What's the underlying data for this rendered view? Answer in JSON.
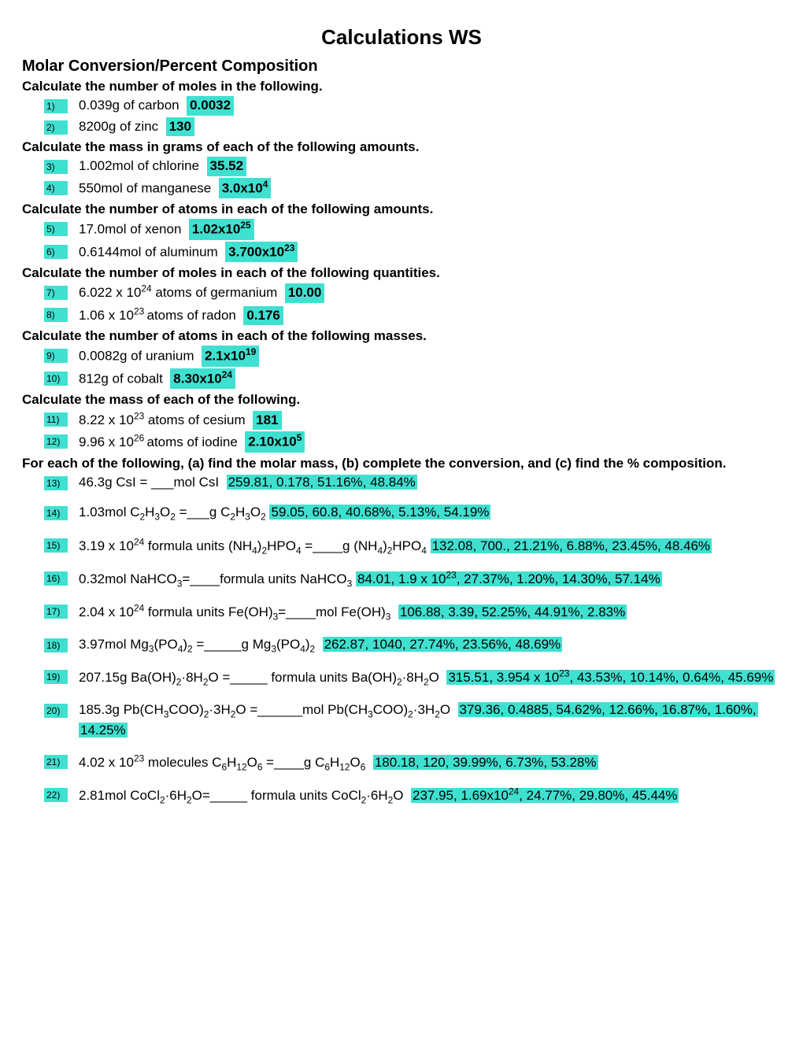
{
  "title": "Calculations WS",
  "section_heading": "Molar Conversion/Percent Composition",
  "instr_moles": "Calculate the number of moles in the following.",
  "q1_num": "1)",
  "q1_text": "0.039g of carbon",
  "q1_ans": "0.0032",
  "q2_num": "2)",
  "q2_text": "8200g of zinc",
  "q2_ans": "130",
  "instr_massg": "Calculate the mass in grams of each of the following amounts.",
  "q3_num": "3)",
  "q3_text": "1.002mol of chlorine",
  "q3_ans": "35.52",
  "q4_num": "4)",
  "q4_text": "550mol of manganese",
  "q4_ans_pre": "3.0x10",
  "q4_ans_sup": "4",
  "instr_atoms_amt": "Calculate the number of atoms in each of the following amounts.",
  "q5_num": "5)",
  "q5_text": "17.0mol of xenon",
  "q5_ans_pre": "1.02x10",
  "q5_ans_sup": "25",
  "q6_num": "6)",
  "q6_text": "0.6144mol of aluminum",
  "q6_ans_pre": "3.700x10",
  "q6_ans_sup": "23",
  "instr_moles_qty": "Calculate the number of moles in each of the following quantities.",
  "q7_num": "7)",
  "q7_text_pre": "6.022 x 10",
  "q7_text_sup": "24",
  "q7_text_post": " atoms of germanium",
  "q7_ans": "10.00",
  "q8_num": "8)",
  "q8_text_pre": "1.06 x 10",
  "q8_text_sup": "23 ",
  "q8_text_post": "atoms of radon",
  "q8_ans": "0.176",
  "instr_atoms_mass": "Calculate the number of atoms in each of the following masses.",
  "q9_num": "9)",
  "q9_text": "0.0082g of uranium",
  "q9_ans_pre": "2.1x10",
  "q9_ans_sup": "19",
  "q10_num": "10)",
  "q10_text": "812g of cobalt",
  "q10_ans_pre": "8.30x10",
  "q10_ans_sup": "24",
  "instr_mass_each": "Calculate the mass of each of the following.",
  "q11_num": "11)",
  "q11_text_pre": "8.22 x 10",
  "q11_text_sup": "23",
  "q11_text_post": " atoms of cesium",
  "q11_ans": "181",
  "q12_num": "12)",
  "q12_text_pre": "9.96 x 10",
  "q12_text_sup": "26 ",
  "q12_text_post": "atoms of iodine",
  "q12_ans_pre": "2.10x10",
  "q12_ans_sup": "5",
  "instr_long": "For each of the following, (a) find the molar mass, (b) complete the conversion, and (c) find the % composition.",
  "q13_num": "13)",
  "q13_text": "46.3g CsI = ___mol CsI",
  "q13_ans": "259.81, 0.178, 51.16%, 48.84%",
  "q14_num": "14)",
  "q14_ans": "59.05, 60.8, 40.68%, 5.13%, 54.19%",
  "q15_num": "15)",
  "q15_ans": "132.08, 700., 21.21%, 6.88%, 23.45%, 48.46%",
  "q16_num": "16)",
  "q16_ans_pre": "84.01, 1.9 x 10",
  "q16_ans_sup": "23",
  "q16_ans_post": ", 27.37%, 1.20%, 14.30%, 57.14%",
  "q17_num": "17)",
  "q17_ans": "106.88, 3.39, 52.25%, 44.91%, 2.83%",
  "q18_num": "18)",
  "q18_ans": "262.87, 1040, 27.74%, 23.56%, 48.69%",
  "q19_num": "19)",
  "q19_ans_pre": "315.51, 3.954 x 10",
  "q19_ans_sup": "23",
  "q19_ans_post": ", 43.53%, 10.14%, 0.64%, 45.69%",
  "q20_num": "20)",
  "q20_ans": "379.36, 0.4885, 54.62%, 12.66%, 16.87%, 1.60%, 14.25%",
  "q21_num": "21)",
  "q21_ans": "180.18, 120, 39.99%, 6.73%, 53.28%",
  "q22_num": "22)",
  "q22_ans_pre": "237.95, 1.69x10",
  "q22_ans_sup": "24",
  "q22_ans_post": ", 24.77%, 29.80%, 45.44%",
  "hl_color": "#40e0d0"
}
